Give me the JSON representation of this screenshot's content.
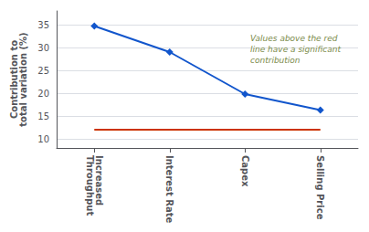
{
  "chart_data": {
    "type": "line",
    "categories": [
      "Increased\nThroughput",
      "Interest Rate",
      "Capex",
      "Selling Price"
    ],
    "values": [
      34.7,
      29.0,
      19.8,
      16.3
    ],
    "color": "#1155CC",
    "marker": "diamond",
    "ylim": [
      8,
      38
    ],
    "yticks": [
      10,
      15,
      20,
      25,
      30,
      35
    ],
    "ylabel": "Contribution to\ntotal variation (%)",
    "grid": true,
    "threshold": {
      "value": 12.0,
      "color": "#CC3300"
    },
    "annotation": {
      "text": "Values above the red\nline have a significant\ncontribution",
      "color": "#7B8B4B"
    }
  }
}
